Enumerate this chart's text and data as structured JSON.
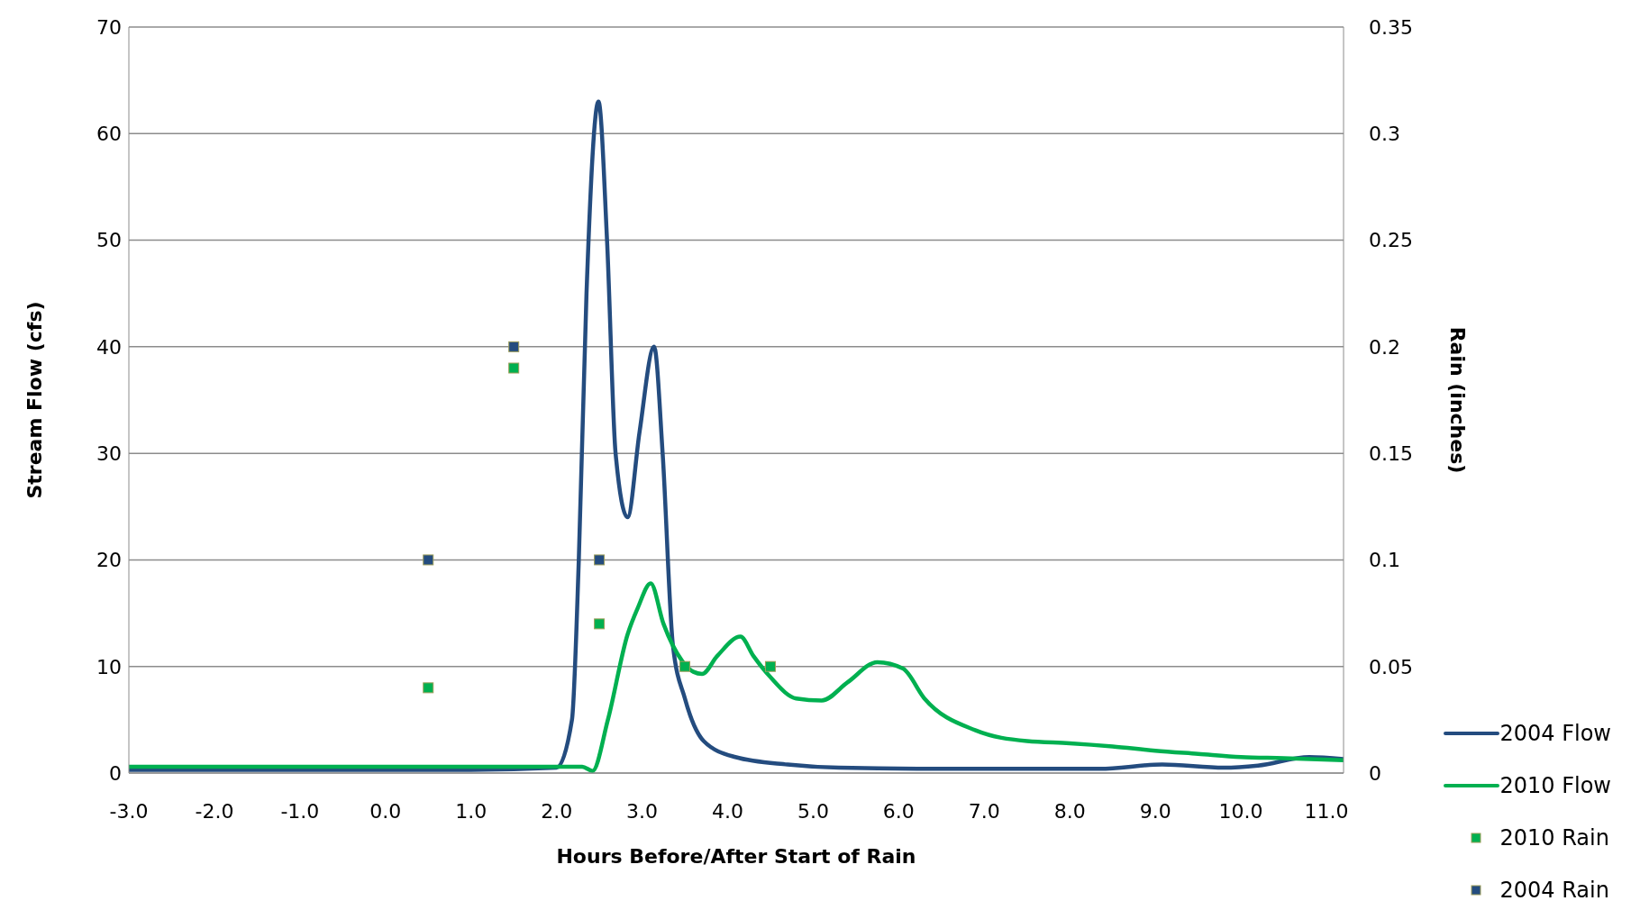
{
  "chart_data": {
    "type": "line",
    "xlabel": "Hours Before/After Start of Rain",
    "ylabel": "Stream Flow (cfs)",
    "y2label": "Rain (inches)",
    "xlim": [
      -3,
      11.2
    ],
    "xticks": [
      {
        "value": -3,
        "label": "-3.0"
      },
      {
        "value": -2,
        "label": "-2.0"
      },
      {
        "value": -1,
        "label": "-1.0"
      },
      {
        "value": 0,
        "label": "0.0"
      },
      {
        "value": 1,
        "label": "1.0"
      },
      {
        "value": 2,
        "label": "2.0"
      },
      {
        "value": 3,
        "label": "3.0"
      },
      {
        "value": 4,
        "label": "4.0"
      },
      {
        "value": 5,
        "label": "5.0"
      },
      {
        "value": 6,
        "label": "6.0"
      },
      {
        "value": 7,
        "label": "7.0"
      },
      {
        "value": 8,
        "label": "8.0"
      },
      {
        "value": 9,
        "label": "9.0"
      },
      {
        "value": 10,
        "label": "10.0"
      },
      {
        "value": 11,
        "label": "11.0"
      }
    ],
    "ylim": [
      0,
      70
    ],
    "yticks": [
      0,
      10,
      20,
      30,
      40,
      50,
      60,
      70
    ],
    "y2lim": [
      0,
      0.35
    ],
    "y2ticks": [
      0,
      0.05,
      0.1,
      0.15,
      0.2,
      0.25,
      0.3,
      0.35
    ],
    "grid": "y",
    "legend": "bottom right",
    "line_style": "solid",
    "series": [
      {
        "name": "2004 Flow",
        "marker": "none",
        "color": "#244c7f",
        "x": [
          -3,
          -2,
          -1,
          0,
          1,
          2.0,
          2.18,
          2.26,
          2.35,
          2.49,
          2.59,
          2.69,
          2.83,
          2.97,
          3.14,
          3.24,
          3.36,
          3.5,
          3.72,
          4.09,
          4.7,
          5.3,
          6.5,
          8.35,
          9.08,
          9.8,
          10.2,
          10.8,
          11.2
        ],
        "values": [
          0.3,
          0.3,
          0.3,
          0.3,
          0.3,
          0.5,
          5,
          20,
          45,
          63,
          50,
          30,
          24,
          32,
          40,
          30,
          12,
          7,
          3,
          1.5,
          0.8,
          0.5,
          0.4,
          0.4,
          0.8,
          0.5,
          0.7,
          1.5,
          1.3
        ]
      },
      {
        "name": "2010 Flow",
        "marker": "none",
        "color": "#00b050",
        "x": [
          -3,
          -2,
          -1,
          0,
          1,
          2.0,
          2.3,
          2.42,
          2.6,
          2.83,
          2.95,
          3.1,
          3.25,
          3.47,
          3.6,
          3.7,
          3.88,
          4.15,
          4.3,
          4.5,
          4.8,
          5.1,
          5.4,
          5.75,
          6.05,
          6.3,
          6.9,
          7.5,
          8.0,
          8.5,
          9.0,
          9.5,
          10.0,
          10.5,
          11.2
        ],
        "values": [
          0.6,
          0.6,
          0.6,
          0.6,
          0.6,
          0.6,
          0.6,
          0.2,
          5,
          13,
          15.5,
          17.8,
          14,
          10.5,
          9.5,
          9.3,
          11,
          12.8,
          11,
          9,
          7,
          6.8,
          8.5,
          10.4,
          9.8,
          7,
          4,
          3,
          2.8,
          2.5,
          2.1,
          1.8,
          1.5,
          1.4,
          1.2
        ]
      },
      {
        "name": "2010 Rain",
        "type": "scatter",
        "marker": "square",
        "axis": "y2",
        "color": "#00b050",
        "x": [
          0.5,
          1.5,
          2.5,
          3.5,
          4.5
        ],
        "values": [
          0.04,
          0.19,
          0.07,
          0.05,
          0.05
        ]
      },
      {
        "name": "2004 Rain",
        "type": "scatter",
        "marker": "square",
        "axis": "y2",
        "color": "#244c7f",
        "x": [
          0.5,
          1.5,
          2.5
        ],
        "values": [
          0.1,
          0.2,
          0.1
        ]
      }
    ]
  }
}
